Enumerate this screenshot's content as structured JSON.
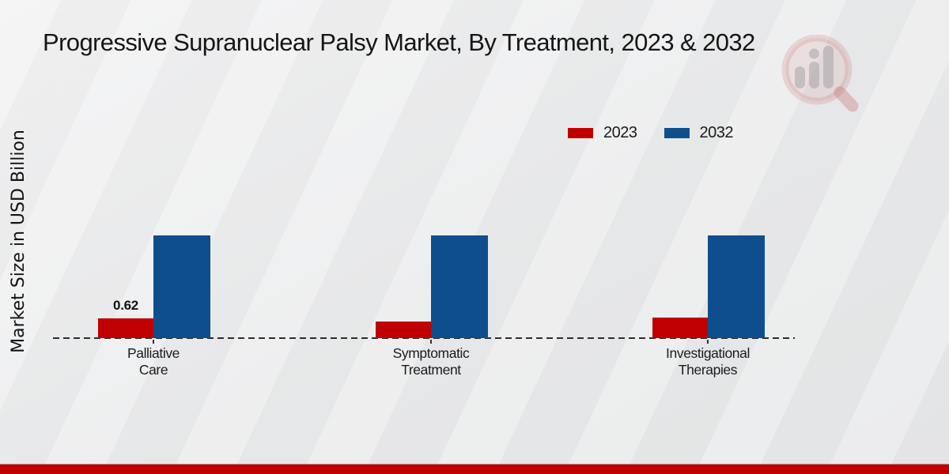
{
  "title": "Progressive Supranuclear Palsy Market, By Treatment, 2023 & 2032",
  "y_axis_label": "Market Size in USD Billion",
  "legend": {
    "items": [
      {
        "label": "2023",
        "color": "#c00000"
      },
      {
        "label": "2032",
        "color": "#0f4e8c"
      }
    ]
  },
  "chart_data": {
    "type": "bar",
    "title": "Progressive Supranuclear Palsy Market, By Treatment, 2023 & 2032",
    "categories": [
      "Palliative Care",
      "Symptomatic Treatment",
      "Investigational Therapies"
    ],
    "category_lines": [
      [
        "Palliative",
        "Care"
      ],
      [
        "Symptomatic",
        "Treatment"
      ],
      [
        "Investigational",
        "Therapies"
      ]
    ],
    "series": [
      {
        "name": "2023",
        "color": "#c00000",
        "values": [
          0.62,
          0.53,
          0.63
        ],
        "data_labels": [
          "0.62",
          "",
          ""
        ]
      },
      {
        "name": "2032",
        "color": "#0f4e8c",
        "values": [
          3.2,
          3.2,
          3.2
        ],
        "data_labels": [
          "",
          "",
          ""
        ]
      }
    ],
    "xlabel": "",
    "ylabel": "Market Size in USD Billion",
    "ylim": [
      0,
      3.5
    ],
    "grid": false,
    "legend_position": "top-right",
    "baseline_style": "dashed"
  },
  "watermark": {
    "icon": "magnifier-bar-chart-logo"
  },
  "footer": {
    "accent_color": "#c00000"
  }
}
